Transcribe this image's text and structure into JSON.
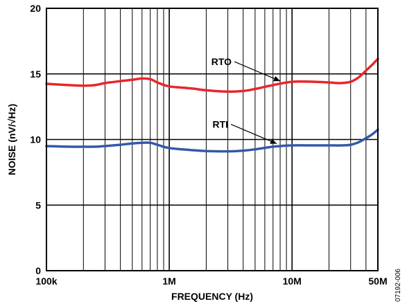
{
  "chart_data": {
    "type": "line",
    "xlabel": "FREQUENCY (Hz)",
    "ylabel": "NOISE (nV/√Hz)",
    "x_scale": "log",
    "xlim": [
      100000,
      50000000
    ],
    "ylim": [
      0,
      20
    ],
    "x_ticks": [
      {
        "value": 100000,
        "label": "100k"
      },
      {
        "value": 1000000,
        "label": "1M"
      },
      {
        "value": 10000000,
        "label": "10M"
      },
      {
        "value": 50000000,
        "label": "50M"
      }
    ],
    "y_ticks": [
      {
        "value": 0,
        "label": "0"
      },
      {
        "value": 5,
        "label": "5"
      },
      {
        "value": 10,
        "label": "10"
      },
      {
        "value": 15,
        "label": "15"
      },
      {
        "value": 20,
        "label": "20"
      }
    ],
    "grid": true,
    "series": [
      {
        "name": "RTO",
        "color": "#e8262a",
        "points": [
          [
            100000,
            14.25
          ],
          [
            150000,
            14.15
          ],
          [
            200000,
            14.1
          ],
          [
            250000,
            14.15
          ],
          [
            300000,
            14.3
          ],
          [
            400000,
            14.45
          ],
          [
            500000,
            14.55
          ],
          [
            600000,
            14.65
          ],
          [
            700000,
            14.6
          ],
          [
            800000,
            14.35
          ],
          [
            1000000,
            14.05
          ],
          [
            1500000,
            13.9
          ],
          [
            2000000,
            13.75
          ],
          [
            3000000,
            13.65
          ],
          [
            4000000,
            13.7
          ],
          [
            5000000,
            13.85
          ],
          [
            7000000,
            14.15
          ],
          [
            10000000,
            14.4
          ],
          [
            15000000,
            14.4
          ],
          [
            20000000,
            14.35
          ],
          [
            25000000,
            14.3
          ],
          [
            30000000,
            14.4
          ],
          [
            35000000,
            14.75
          ],
          [
            40000000,
            15.25
          ],
          [
            45000000,
            15.7
          ],
          [
            50000000,
            16.15
          ]
        ]
      },
      {
        "name": "RTI",
        "color": "#3458a8",
        "points": [
          [
            100000,
            9.5
          ],
          [
            150000,
            9.45
          ],
          [
            200000,
            9.45
          ],
          [
            250000,
            9.45
          ],
          [
            300000,
            9.5
          ],
          [
            400000,
            9.6
          ],
          [
            500000,
            9.7
          ],
          [
            600000,
            9.75
          ],
          [
            700000,
            9.75
          ],
          [
            800000,
            9.6
          ],
          [
            1000000,
            9.35
          ],
          [
            1500000,
            9.2
          ],
          [
            2000000,
            9.12
          ],
          [
            3000000,
            9.1
          ],
          [
            4000000,
            9.15
          ],
          [
            5000000,
            9.25
          ],
          [
            7000000,
            9.45
          ],
          [
            10000000,
            9.55
          ],
          [
            15000000,
            9.55
          ],
          [
            20000000,
            9.55
          ],
          [
            25000000,
            9.55
          ],
          [
            30000000,
            9.6
          ],
          [
            35000000,
            9.8
          ],
          [
            40000000,
            10.1
          ],
          [
            45000000,
            10.4
          ],
          [
            50000000,
            10.75
          ]
        ]
      }
    ],
    "annotations": [
      {
        "text": "RTO",
        "series": "RTO",
        "at_x": 8000000
      },
      {
        "text": "RTI",
        "series": "RTI",
        "at_x": 7500000
      }
    ],
    "figure_id": "07192-006"
  }
}
